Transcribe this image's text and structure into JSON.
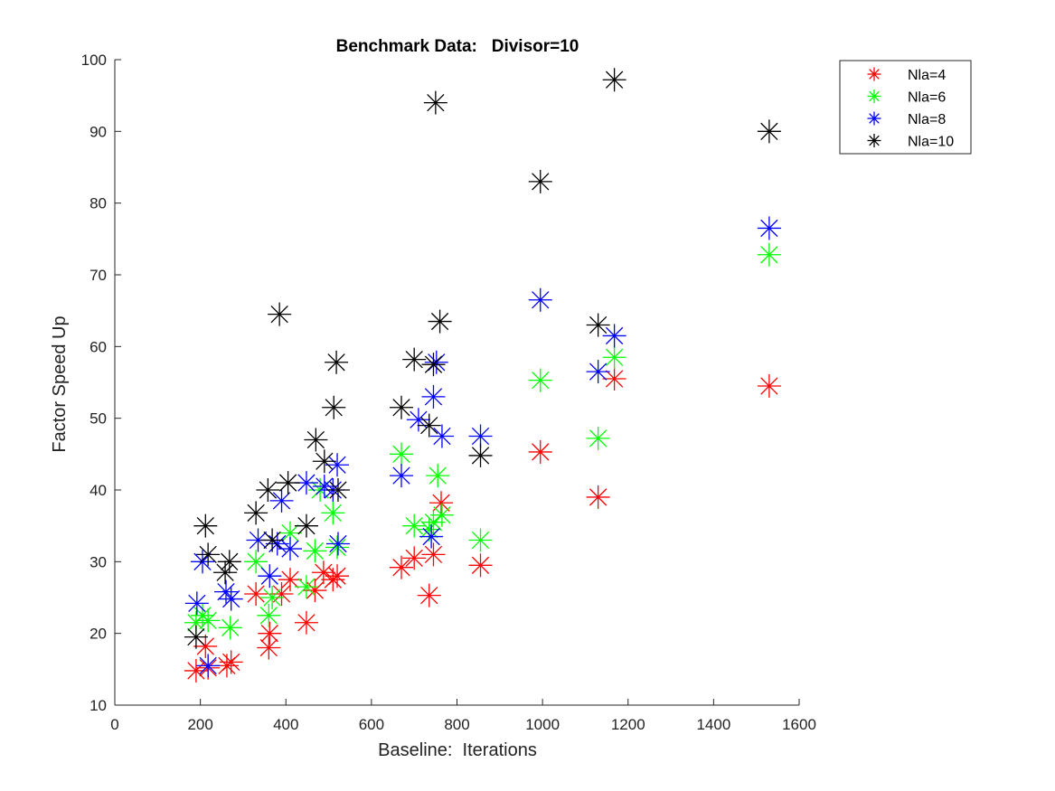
{
  "chart_data": {
    "type": "scatter",
    "title": "Benchmark Data:   Divisor=10",
    "xlabel": "Baseline:  Iterations",
    "ylabel": "Factor Speed Up",
    "xlim": [
      0,
      1600
    ],
    "ylim": [
      10,
      100
    ],
    "xticks": [
      0,
      200,
      400,
      600,
      800,
      1000,
      1200,
      1400,
      1600
    ],
    "yticks": [
      10,
      20,
      30,
      40,
      50,
      60,
      70,
      80,
      90,
      100
    ],
    "grid": false,
    "legend_position": "top-right-outside",
    "marker": "asterisk",
    "series": [
      {
        "name": "Nla=4",
        "color": "#ff0000",
        "points": [
          [
            190,
            14.8
          ],
          [
            212,
            18.2
          ],
          [
            218,
            15.2
          ],
          [
            262,
            15.5
          ],
          [
            272,
            16.0
          ],
          [
            330,
            25.5
          ],
          [
            360,
            18.0
          ],
          [
            362,
            20.0
          ],
          [
            390,
            25.5
          ],
          [
            410,
            27.5
          ],
          [
            448,
            21.5
          ],
          [
            468,
            26.0
          ],
          [
            488,
            28.5
          ],
          [
            510,
            27.5
          ],
          [
            520,
            28.0
          ],
          [
            670,
            29.2
          ],
          [
            700,
            30.5
          ],
          [
            735,
            25.3
          ],
          [
            745,
            31.0
          ],
          [
            763,
            38.2
          ],
          [
            855,
            29.5
          ],
          [
            995,
            45.3
          ],
          [
            1130,
            39.0
          ],
          [
            1168,
            55.5
          ],
          [
            1530,
            54.5
          ]
        ]
      },
      {
        "name": "Nla=6",
        "color": "#00ff00",
        "points": [
          [
            190,
            21.5
          ],
          [
            205,
            22.5
          ],
          [
            218,
            21.8
          ],
          [
            270,
            20.8
          ],
          [
            330,
            30.0
          ],
          [
            360,
            22.5
          ],
          [
            368,
            25.0
          ],
          [
            410,
            34.0
          ],
          [
            448,
            26.5
          ],
          [
            468,
            31.5
          ],
          [
            480,
            40.0
          ],
          [
            510,
            36.8
          ],
          [
            520,
            32.0
          ],
          [
            670,
            45.0
          ],
          [
            700,
            35.0
          ],
          [
            735,
            34.5
          ],
          [
            745,
            35.5
          ],
          [
            755,
            42.0
          ],
          [
            765,
            36.5
          ],
          [
            855,
            33.0
          ],
          [
            995,
            55.3
          ],
          [
            1130,
            47.2
          ],
          [
            1168,
            58.5
          ],
          [
            1530,
            72.8
          ]
        ]
      },
      {
        "name": "Nla=8",
        "color": "#0000ff",
        "points": [
          [
            192,
            24.2
          ],
          [
            205,
            30.0
          ],
          [
            218,
            15.5
          ],
          [
            260,
            25.8
          ],
          [
            272,
            24.8
          ],
          [
            335,
            33.0
          ],
          [
            362,
            28.0
          ],
          [
            380,
            32.5
          ],
          [
            390,
            38.5
          ],
          [
            410,
            31.8
          ],
          [
            448,
            41.0
          ],
          [
            490,
            40.5
          ],
          [
            510,
            40.0
          ],
          [
            520,
            43.5
          ],
          [
            522,
            32.5
          ],
          [
            670,
            42.0
          ],
          [
            710,
            49.8
          ],
          [
            740,
            33.5
          ],
          [
            745,
            53.0
          ],
          [
            752,
            57.8
          ],
          [
            765,
            47.5
          ],
          [
            855,
            47.5
          ],
          [
            995,
            66.5
          ],
          [
            1130,
            56.5
          ],
          [
            1168,
            61.5
          ],
          [
            1530,
            76.5
          ]
        ]
      },
      {
        "name": "Nla=10",
        "color": "#000000",
        "points": [
          [
            190,
            19.5
          ],
          [
            212,
            35.0
          ],
          [
            218,
            31.0
          ],
          [
            258,
            28.5
          ],
          [
            268,
            30.0
          ],
          [
            330,
            36.8
          ],
          [
            358,
            40.0
          ],
          [
            368,
            33.0
          ],
          [
            385,
            64.5
          ],
          [
            405,
            41.0
          ],
          [
            448,
            35.0
          ],
          [
            470,
            47.0
          ],
          [
            490,
            44.0
          ],
          [
            512,
            51.5
          ],
          [
            518,
            57.8
          ],
          [
            522,
            40.0
          ],
          [
            670,
            51.5
          ],
          [
            700,
            58.2
          ],
          [
            735,
            49.0
          ],
          [
            745,
            57.5
          ],
          [
            750,
            94.0
          ],
          [
            760,
            63.5
          ],
          [
            855,
            44.8
          ],
          [
            995,
            83.0
          ],
          [
            1130,
            63.0
          ],
          [
            1168,
            97.2
          ],
          [
            1530,
            90.0
          ]
        ]
      }
    ]
  }
}
